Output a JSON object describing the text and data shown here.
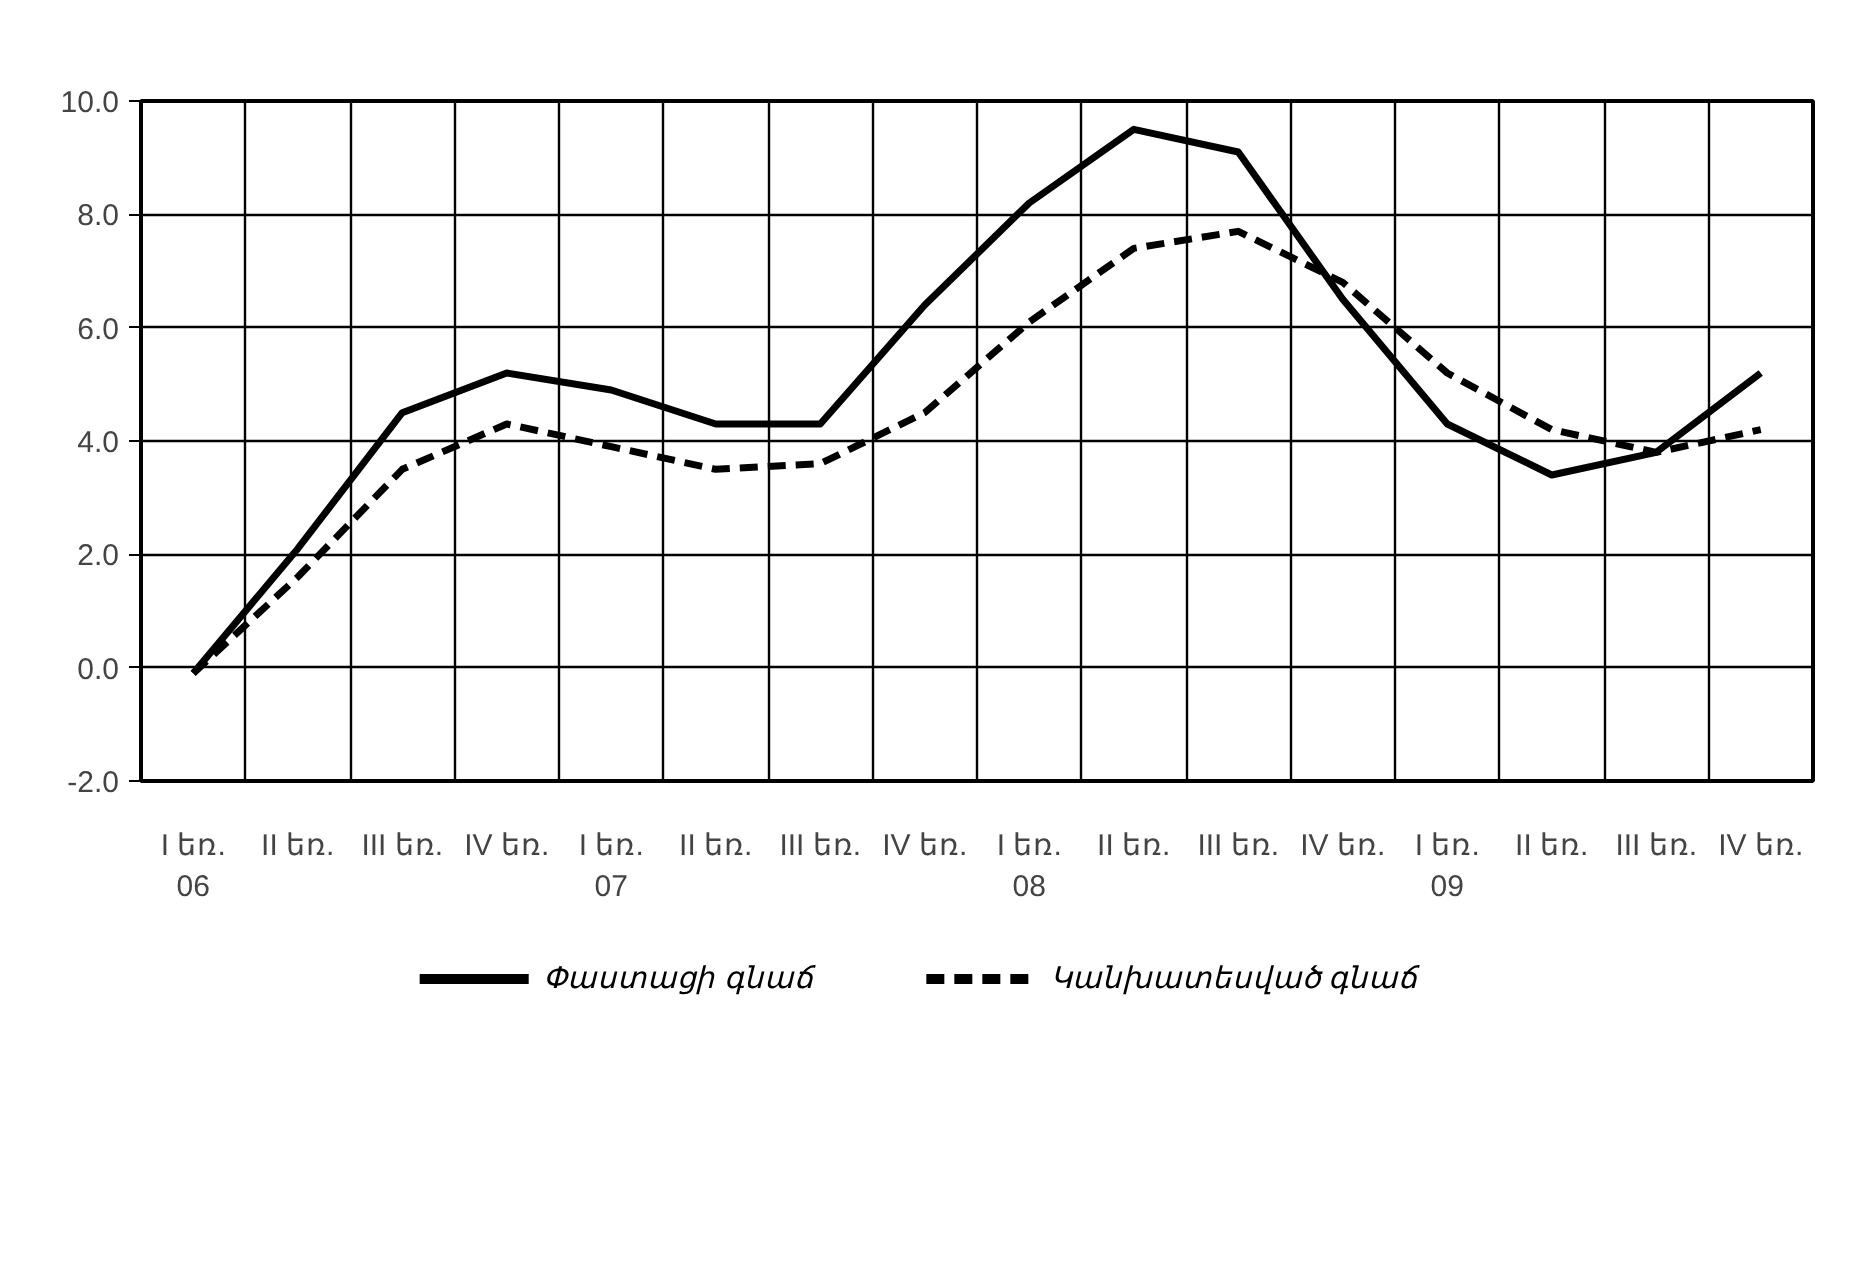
{
  "chart_data": {
    "type": "line",
    "categories": [
      "I եռ.\n06",
      "II եռ.",
      "III եռ.",
      "IV եռ.",
      "I եռ.\n07",
      "II եռ.",
      "III եռ.",
      "IV եռ.",
      "I եռ.\n08",
      "II եռ.",
      "III եռ.",
      "IV եռ.",
      "I եռ.\n09",
      "II եռ.",
      "III եռ.",
      "IV եռ."
    ],
    "series": [
      {
        "name": "Փաստացի գնաճ",
        "color": "#000000",
        "line_style": "solid",
        "values": [
          -0.1,
          2.1,
          4.5,
          5.2,
          4.9,
          4.3,
          4.3,
          6.4,
          8.2,
          9.5,
          9.1,
          6.5,
          4.3,
          3.4,
          3.8,
          5.2
        ]
      },
      {
        "name": "Կանխատեսված գնաճ",
        "color": "#000000",
        "line_style": "dashed",
        "values": [
          -0.1,
          1.6,
          3.5,
          4.3,
          3.9,
          3.5,
          3.6,
          4.5,
          6.1,
          7.4,
          7.7,
          6.8,
          5.2,
          4.2,
          3.8,
          4.2
        ]
      }
    ],
    "ylim": [
      -2,
      10
    ],
    "yticks": [
      {
        "value": -2,
        "label": "-2.0"
      },
      {
        "value": 0,
        "label": "0.0"
      },
      {
        "value": 2,
        "label": "2.0"
      },
      {
        "value": 4,
        "label": "4.0"
      },
      {
        "value": 6,
        "label": "6.0"
      },
      {
        "value": 8,
        "label": "8.0"
      },
      {
        "value": 10,
        "label": "10.0"
      }
    ],
    "grid": true,
    "legend": "bottom"
  }
}
